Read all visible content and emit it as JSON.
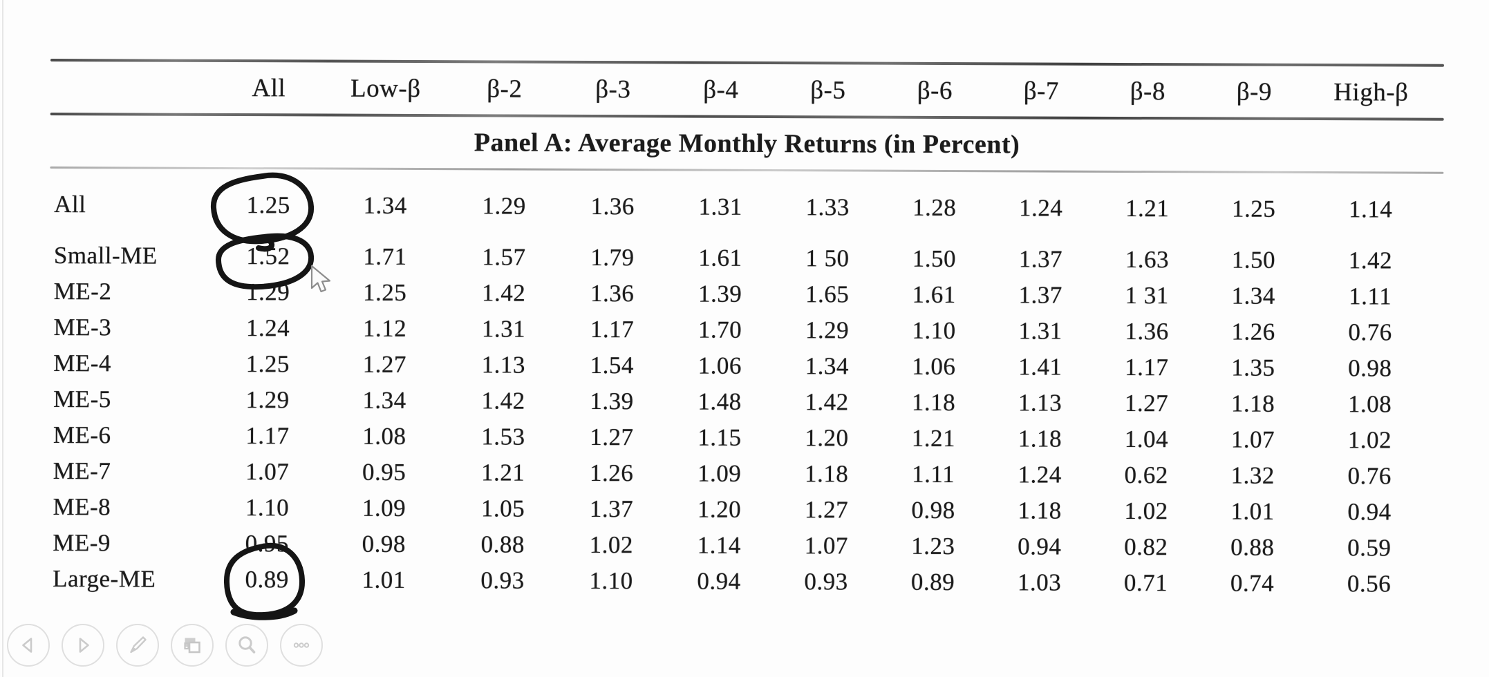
{
  "table": {
    "panel_title": "Panel A: Average Monthly Returns (in Percent)",
    "columns": [
      "All",
      "Low-β",
      "β-2",
      "β-3",
      "β-4",
      "β-5",
      "β-6",
      "β-7",
      "β-8",
      "β-9",
      "High-β"
    ],
    "rows": [
      {
        "label": "All",
        "values": [
          "1.25",
          "1.34",
          "1.29",
          "1.36",
          "1.31",
          "1.33",
          "1.28",
          "1.24",
          "1.21",
          "1.25",
          "1.14"
        ]
      },
      {
        "label": "Small-ME",
        "values": [
          "1.52",
          "1.71",
          "1.57",
          "1.79",
          "1.61",
          "1 50",
          "1.50",
          "1.37",
          "1.63",
          "1.50",
          "1.42"
        ]
      },
      {
        "label": "ME-2",
        "values": [
          "1.29",
          "1.25",
          "1.42",
          "1.36",
          "1.39",
          "1.65",
          "1.61",
          "1.37",
          "1 31",
          "1.34",
          "1.11"
        ]
      },
      {
        "label": "ME-3",
        "values": [
          "1.24",
          "1.12",
          "1.31",
          "1.17",
          "1.70",
          "1.29",
          "1.10",
          "1.31",
          "1.36",
          "1.26",
          "0.76"
        ]
      },
      {
        "label": "ME-4",
        "values": [
          "1.25",
          "1.27",
          "1.13",
          "1.54",
          "1.06",
          "1.34",
          "1.06",
          "1.41",
          "1.17",
          "1.35",
          "0.98"
        ]
      },
      {
        "label": "ME-5",
        "values": [
          "1.29",
          "1.34",
          "1.42",
          "1.39",
          "1.48",
          "1.42",
          "1.18",
          "1.13",
          "1.27",
          "1.18",
          "1.08"
        ]
      },
      {
        "label": "ME-6",
        "values": [
          "1.17",
          "1.08",
          "1.53",
          "1.27",
          "1.15",
          "1.20",
          "1.21",
          "1.18",
          "1.04",
          "1.07",
          "1.02"
        ]
      },
      {
        "label": "ME-7",
        "values": [
          "1.07",
          "0.95",
          "1.21",
          "1.26",
          "1.09",
          "1.18",
          "1.11",
          "1.24",
          "0.62",
          "1.32",
          "0.76"
        ]
      },
      {
        "label": "ME-8",
        "values": [
          "1.10",
          "1.09",
          "1.05",
          "1.37",
          "1.20",
          "1.27",
          "0.98",
          "1.18",
          "1.02",
          "1.01",
          "0.94"
        ]
      },
      {
        "label": "ME-9",
        "values": [
          "0.95",
          "0.98",
          "0.88",
          "1.02",
          "1.14",
          "1.07",
          "1.23",
          "0.94",
          "0.82",
          "0.88",
          "0.59"
        ]
      },
      {
        "label": "Large-ME",
        "values": [
          "0.89",
          "1.01",
          "0.93",
          "1.10",
          "0.94",
          "0.93",
          "0.89",
          "1.03",
          "0.71",
          "0.74",
          "0.56"
        ]
      }
    ]
  },
  "annotations": {
    "ink_color": "#151515",
    "circled_values": [
      {
        "row": "All",
        "column": "All",
        "value": "1.25"
      },
      {
        "row": "Small-ME",
        "column": "All",
        "value": "1.52"
      },
      {
        "row": "Large-ME",
        "column": "All",
        "value": "0.89"
      }
    ]
  },
  "toolbar": {
    "buttons": [
      {
        "icon": "previous-arrow-icon"
      },
      {
        "icon": "next-arrow-icon"
      },
      {
        "icon": "pen-icon"
      },
      {
        "icon": "copy-windows-icon"
      },
      {
        "icon": "magnifier-icon"
      },
      {
        "icon": "more-ellipsis-icon"
      }
    ]
  }
}
